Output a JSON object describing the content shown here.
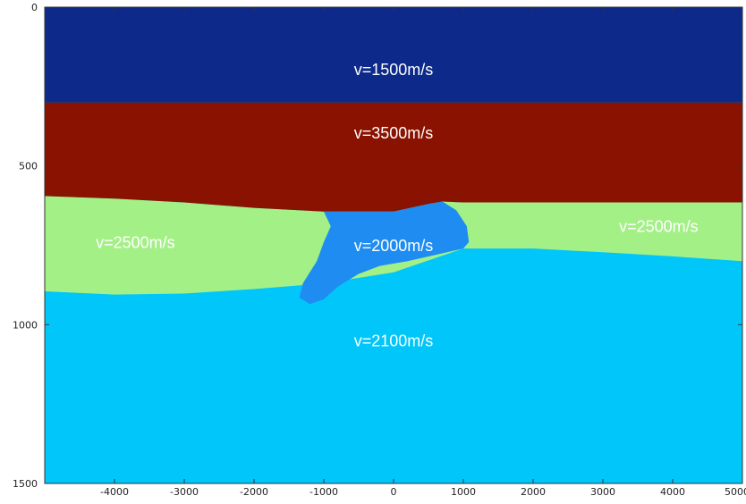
{
  "chart_data": {
    "type": "heatmap",
    "title": "",
    "xlabel": "",
    "ylabel": "",
    "xlim": [
      -5000,
      5000
    ],
    "ylim": [
      1500,
      0
    ],
    "x_ticks": [
      -4000,
      -3000,
      -2000,
      -1000,
      0,
      1000,
      2000,
      3000,
      4000,
      5000
    ],
    "y_ticks": [
      0,
      500,
      1000,
      1500
    ],
    "x_tick_labels": [
      "-4000",
      "-3000",
      "-2000",
      "-1000",
      "0",
      "1000",
      "2000",
      "3000",
      "4000",
      "5000"
    ],
    "y_tick_labels": [
      "0",
      "500",
      "1000",
      "1500"
    ],
    "layers": [
      {
        "label": "v=1500m/s",
        "velocity": 1500,
        "color": "#0d2a8a",
        "label_x": 0,
        "label_depth": 200,
        "boundary_top": [
          [
            -5000,
            0
          ],
          [
            5000,
            0
          ]
        ],
        "boundary_bottom": [
          [
            -5000,
            300
          ],
          [
            5000,
            300
          ]
        ]
      },
      {
        "label": "v=3500m/s",
        "velocity": 3500,
        "color": "#8a1200",
        "label_x": 0,
        "label_depth": 400,
        "boundary_top": [
          [
            -5000,
            300
          ],
          [
            5000,
            300
          ]
        ],
        "boundary_bottom": [
          [
            -5000,
            595
          ],
          [
            -4000,
            603
          ],
          [
            -3000,
            615
          ],
          [
            -2000,
            632
          ],
          [
            -1000,
            644
          ],
          [
            0,
            644
          ],
          [
            500,
            620
          ],
          [
            700,
            612
          ],
          [
            1000,
            615
          ],
          [
            2000,
            615
          ],
          [
            3000,
            615
          ],
          [
            4000,
            615
          ],
          [
            5000,
            615
          ]
        ]
      },
      {
        "label": "v=2500m/s",
        "velocity": 2500,
        "color": "#a3f087",
        "label_x": -3700,
        "label_depth": 745
      },
      {
        "label": "v=2500m/s",
        "velocity": 2500,
        "color": "#a3f087",
        "label_x": 3800,
        "label_depth": 695
      },
      {
        "label": "v=2000m/s",
        "velocity": 2000,
        "color": "#1e8cf0",
        "label_x": 0,
        "label_depth": 755,
        "outline": [
          [
            -1000,
            644
          ],
          [
            0,
            644
          ],
          [
            500,
            620
          ],
          [
            700,
            612
          ],
          [
            900,
            640
          ],
          [
            1050,
            690
          ],
          [
            1080,
            740
          ],
          [
            1000,
            760
          ],
          [
            600,
            780
          ],
          [
            200,
            800
          ],
          [
            -200,
            815
          ],
          [
            -500,
            840
          ],
          [
            -800,
            880
          ],
          [
            -1000,
            920
          ],
          [
            -1200,
            935
          ],
          [
            -1350,
            915
          ],
          [
            -1300,
            870
          ],
          [
            -1100,
            800
          ],
          [
            -1000,
            740
          ],
          [
            -900,
            690
          ]
        ]
      },
      {
        "label": "v=2100m/s",
        "velocity": 2100,
        "color": "#00c6fa",
        "label_x": 0,
        "label_depth": 1055,
        "boundary_top": [
          [
            -5000,
            895
          ],
          [
            -4000,
            905
          ],
          [
            -3000,
            902
          ],
          [
            -2000,
            888
          ],
          [
            -1000,
            870
          ],
          [
            0,
            835
          ],
          [
            1000,
            760
          ],
          [
            2000,
            760
          ],
          [
            3000,
            772
          ],
          [
            4000,
            785
          ],
          [
            5000,
            800
          ]
        ],
        "boundary_bottom": [
          [
            -5000,
            1500
          ],
          [
            5000,
            1500
          ]
        ]
      }
    ]
  }
}
